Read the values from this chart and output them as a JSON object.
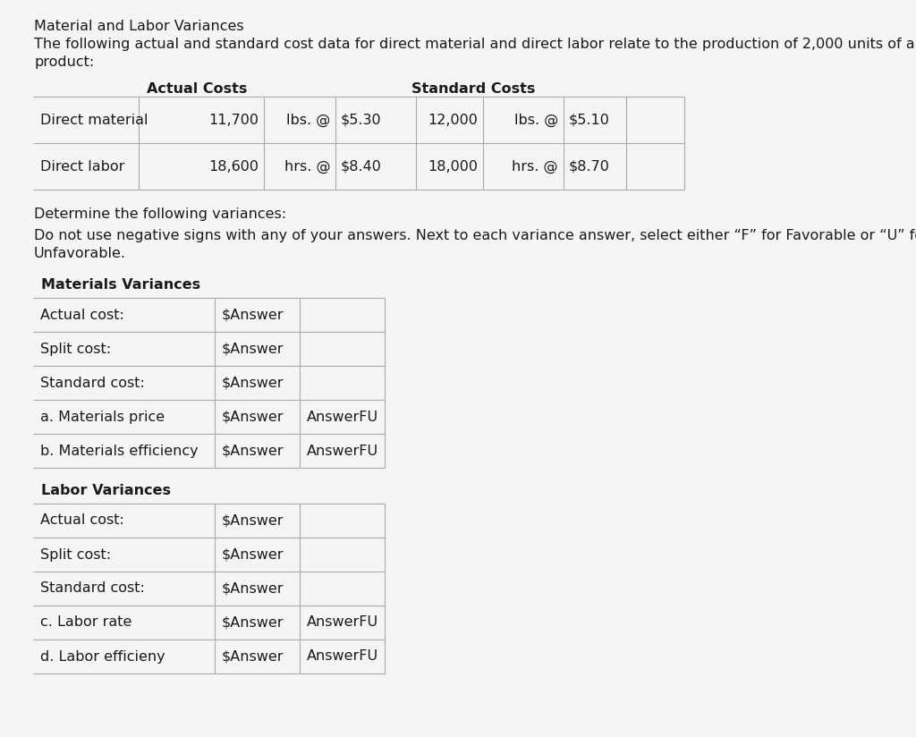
{
  "title": "Material and Labor Variances",
  "subtitle_line1": "The following actual and standard cost data for direct material and direct labor relate to the production of 2,000 units of a",
  "subtitle_line2": "product:",
  "bg_color": "#f5f5f5",
  "text_color": "#1a1a1a",
  "font_size": 11.5,
  "top_table": {
    "row_labels": [
      "Direct material",
      "Direct labor"
    ],
    "actual_vals": [
      "11,700",
      "18,600"
    ],
    "actual_units": [
      "lbs. @",
      "hrs. @"
    ],
    "actual_prices": [
      "$5.30",
      "$8.40"
    ],
    "std_qtys": [
      "12,000",
      "18,000"
    ],
    "std_units": [
      "lbs. @",
      "hrs. @"
    ],
    "std_prices": [
      "$5.10",
      "$8.70"
    ]
  },
  "determine_text": "Determine the following variances:",
  "donot_line1": "Do not use negative signs with any of your answers. Next to each variance answer, select either “F” for Favorable or “U” for",
  "donot_line2": "Unfavorable.",
  "materials_header": "Materials Variances",
  "materials_rows": [
    [
      "Actual cost:",
      "$Answer",
      ""
    ],
    [
      "Split cost:",
      "$Answer",
      ""
    ],
    [
      "Standard cost:",
      "$Answer",
      ""
    ],
    [
      "a. Materials price",
      "$Answer",
      "AnswerFU"
    ],
    [
      "b. Materials efficiency",
      "$Answer",
      "AnswerFU"
    ]
  ],
  "labor_header": "Labor Variances",
  "labor_rows": [
    [
      "Actual cost:",
      "$Answer",
      ""
    ],
    [
      "Split cost:",
      "$Answer",
      ""
    ],
    [
      "Standard cost:",
      "$Answer",
      ""
    ],
    [
      "c. Labor rate",
      "$Answer",
      "AnswerFU"
    ],
    [
      "d. Labor efficieny",
      "$Answer",
      "AnswerFU"
    ]
  ]
}
